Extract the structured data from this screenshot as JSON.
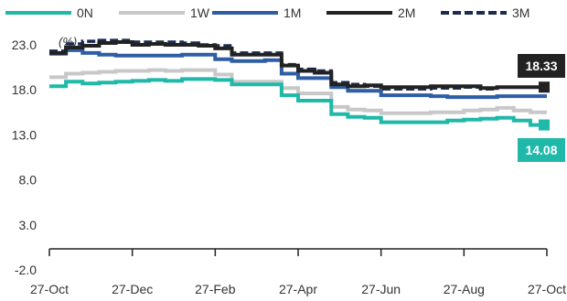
{
  "chart_data": {
    "type": "line",
    "unit": "(%)",
    "x_ticks": [
      "27-Oct",
      "27-Dec",
      "27-Feb",
      "27-Apr",
      "27-Jun",
      "27-Aug",
      "27-Oct"
    ],
    "y_ticks": [
      "23.0",
      "18.0",
      "13.0",
      "8.0",
      "3.0",
      "-2.0"
    ],
    "ylim": [
      -2,
      23
    ],
    "grid": false,
    "legend_position": "top",
    "series": [
      {
        "name": "0N",
        "color": "#1fb8a9",
        "dashed": false,
        "values": [
          18.4,
          18.9,
          18.7,
          18.8,
          18.9,
          19.0,
          19.1,
          19.0,
          19.2,
          19.2,
          19.1,
          18.6,
          18.6,
          18.6,
          17.4,
          16.8,
          16.8,
          15.3,
          15.0,
          14.9,
          14.4,
          14.4,
          14.4,
          14.4,
          14.6,
          14.7,
          14.8,
          14.9,
          14.6,
          14.1
        ],
        "last_label": "14.08"
      },
      {
        "name": "1W",
        "color": "#c8c8c8",
        "dashed": false,
        "values": [
          19.4,
          19.8,
          19.9,
          20.0,
          20.1,
          20.1,
          20.2,
          20.1,
          20.2,
          20.2,
          19.7,
          18.9,
          18.9,
          18.9,
          18.2,
          17.6,
          17.6,
          16.1,
          15.8,
          15.7,
          15.4,
          15.4,
          15.4,
          15.5,
          15.5,
          15.7,
          15.8,
          16.0,
          15.7,
          15.5
        ]
      },
      {
        "name": "1M",
        "color": "#2e5da6",
        "dashed": false,
        "values": [
          22.0,
          22.4,
          22.1,
          21.9,
          21.8,
          21.8,
          21.8,
          21.8,
          21.9,
          21.9,
          21.4,
          21.2,
          21.2,
          21.3,
          19.8,
          19.3,
          19.3,
          18.3,
          17.9,
          17.9,
          17.4,
          17.4,
          17.4,
          17.3,
          17.2,
          17.2,
          17.2,
          17.3,
          17.3,
          17.3
        ]
      },
      {
        "name": "2M",
        "color": "#222222",
        "dashed": false,
        "values": [
          22.1,
          22.7,
          22.9,
          23.2,
          23.3,
          23.0,
          23.1,
          23.0,
          23.0,
          22.9,
          22.6,
          21.9,
          21.9,
          21.9,
          20.7,
          20.1,
          19.9,
          18.6,
          18.4,
          18.5,
          18.3,
          18.3,
          18.3,
          18.4,
          18.4,
          18.4,
          18.2,
          18.3,
          18.3,
          18.3
        ],
        "last_label": "18.33"
      },
      {
        "name": "3M",
        "color": "#1b2a4e",
        "dashed": true,
        "values": [
          22.3,
          23.1,
          23.4,
          23.5,
          23.5,
          23.3,
          23.3,
          23.3,
          23.2,
          23.0,
          22.9,
          22.1,
          22.1,
          22.1,
          20.8,
          20.3,
          20.1,
          18.8,
          18.6,
          18.4,
          18.1,
          18.1,
          18.1,
          18.2,
          18.2,
          18.3,
          18.1,
          18.3,
          18.3,
          18.3
        ]
      }
    ]
  }
}
